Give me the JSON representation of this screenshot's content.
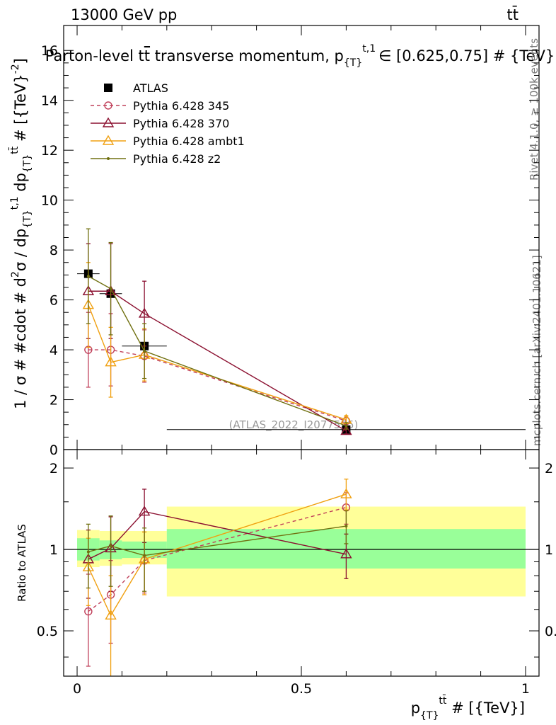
{
  "header": {
    "beam": "13000 GeV pp",
    "process": "tt̄"
  },
  "side_texts": {
    "rivet": "Rivet 4.1.0, ≥ 100k events",
    "site": "mcplots.cern.ch [arXiv:2401.10621]"
  },
  "chart_data": [
    {
      "panel": "main",
      "type": "line",
      "title": "Parton-level t̄t transverse momentum, p_{T}^{t,1} ∈ [0.625,0.75] # {TeV}",
      "title_parts": {
        "pre": "Parton-level t",
        "tbar": "t",
        "mid": " transverse momentum, p",
        "sub": "{T}",
        "sup": "t,1",
        "post": "∈ [0.625,0.75] # {TeV}"
      },
      "ylabel": "1 / σ # #cdot # d²σ / dp_{T}^{t,1} dp_{T}^{tt̄} # [{TeV}⁻²]",
      "ylabel_parts": {
        "a": "1 / σ # #cdot # d",
        "two": "2",
        "b": "σ / dp",
        "t1": "t,1",
        "c": " dp",
        "ttbar": "tt̄",
        "d": " # [{TeV}",
        "exp": "-2",
        "e": "]",
        "sub": "{T}"
      },
      "watermark": "(ATLAS_2022_I2077575)",
      "xlim": [
        -0.03,
        1.03
      ],
      "ylim": [
        0,
        17
      ],
      "yticks": [
        0,
        2,
        4,
        6,
        8,
        10,
        12,
        14,
        16
      ],
      "yticklabels": [
        "0",
        "2",
        "4",
        "6",
        "8",
        "10",
        "12",
        "14",
        "16"
      ],
      "legend_position": "top-left",
      "data": {
        "name": "ATLAS",
        "x": [
          0.025,
          0.075,
          0.15,
          0.6
        ],
        "y": [
          7.05,
          6.25,
          4.15,
          0.8
        ],
        "bins": [
          [
            0,
            0.05
          ],
          [
            0.05,
            0.1
          ],
          [
            0.1,
            0.2
          ],
          [
            0.2,
            1.0
          ]
        ]
      },
      "series": [
        {
          "name": "Pythia 6.428 345",
          "color": "#c0405a",
          "marker": "circle",
          "dash": "5,4",
          "x": [
            0.025,
            0.075,
            0.15,
            0.6
          ],
          "y": [
            4.0,
            4.0,
            3.75,
            1.15
          ],
          "yerr": [
            1.5,
            1.45,
            1.05,
            0.15
          ]
        },
        {
          "name": "Pythia 6.428 370",
          "color": "#8b1030",
          "marker": "triangle",
          "dash": "",
          "x": [
            0.025,
            0.075,
            0.15,
            0.6
          ],
          "y": [
            6.35,
            6.35,
            5.45,
            0.75
          ],
          "yerr": [
            1.9,
            1.9,
            1.3,
            0.12
          ]
        },
        {
          "name": "Pythia 6.428 ambt1",
          "color": "#f0a010",
          "marker": "triangle",
          "dash": "",
          "x": [
            0.025,
            0.075,
            0.15,
            0.6
          ],
          "y": [
            5.8,
            3.5,
            3.8,
            1.2
          ],
          "yerr": [
            1.7,
            1.4,
            1.05,
            0.16
          ]
        },
        {
          "name": "Pythia 6.428 z2",
          "color": "#707010",
          "marker": "dot",
          "dash": "",
          "x": [
            0.025,
            0.075,
            0.15,
            0.6
          ],
          "y": [
            6.95,
            6.45,
            3.95,
            0.95
          ],
          "yerr": [
            1.9,
            1.85,
            1.1,
            0.13
          ]
        }
      ]
    },
    {
      "panel": "ratio",
      "type": "line",
      "ylabel": "Ratio to ATLAS",
      "xlabel_parts": {
        "p": "p",
        "sub": "{T}",
        "sup": "tt̄",
        "post": " # [{TeV}]"
      },
      "xlabel": "p_{T}^{tt̄} # [{TeV}]",
      "xlim": [
        -0.03,
        1.03
      ],
      "ylim": [
        0.34,
        2.34
      ],
      "yscale": "log",
      "yticks": [
        0.5,
        1,
        2
      ],
      "yticklabels": [
        "0.5",
        "1",
        "2"
      ],
      "xticks": [
        0,
        0.5,
        1
      ],
      "xticklabels": [
        "0",
        "0.5",
        "1"
      ],
      "bands": [
        {
          "x0": 0.0,
          "x1": 0.05,
          "stat": [
            0.91,
            1.1
          ],
          "total": [
            0.86,
            1.18
          ]
        },
        {
          "x0": 0.05,
          "x1": 0.1,
          "stat": [
            0.92,
            1.08
          ],
          "total": [
            0.87,
            1.17
          ]
        },
        {
          "x0": 0.1,
          "x1": 0.2,
          "stat": [
            0.93,
            1.07
          ],
          "total": [
            0.88,
            1.17
          ]
        },
        {
          "x0": 0.2,
          "x1": 1.0,
          "stat": [
            0.85,
            1.19
          ],
          "total": [
            0.67,
            1.44
          ]
        }
      ],
      "series": [
        {
          "name": "Pythia 6.428 345",
          "x": [
            0.025,
            0.075,
            0.15,
            0.6
          ],
          "y": [
            0.59,
            0.68,
            0.91,
            1.43
          ],
          "ylo": [
            0.37,
            0.45,
            0.69,
            1.24
          ],
          "yhi": [
            0.81,
            0.91,
            1.16,
            1.62
          ]
        },
        {
          "name": "Pythia 6.428 370",
          "x": [
            0.025,
            0.075,
            0.15,
            0.6
          ],
          "y": [
            0.92,
            1.01,
            1.38,
            0.96
          ],
          "ylo": [
            0.66,
            0.7,
            1.06,
            0.78
          ],
          "yhi": [
            1.18,
            1.32,
            1.67,
            1.14
          ]
        },
        {
          "name": "Pythia 6.428 ambt1",
          "x": [
            0.025,
            0.075,
            0.15,
            0.6
          ],
          "y": [
            0.86,
            0.57,
            0.92,
            1.6
          ],
          "ylo": [
            0.62,
            0.34,
            0.68,
            1.4
          ],
          "yhi": [
            1.1,
            0.8,
            1.16,
            1.82
          ]
        },
        {
          "name": "Pythia 6.428 z2",
          "x": [
            0.025,
            0.075,
            0.15,
            0.6
          ],
          "y": [
            0.98,
            1.03,
            0.95,
            1.22
          ],
          "ylo": [
            0.72,
            0.73,
            0.7,
            1.05
          ],
          "yhi": [
            1.24,
            1.33,
            1.2,
            1.39
          ]
        }
      ]
    }
  ]
}
